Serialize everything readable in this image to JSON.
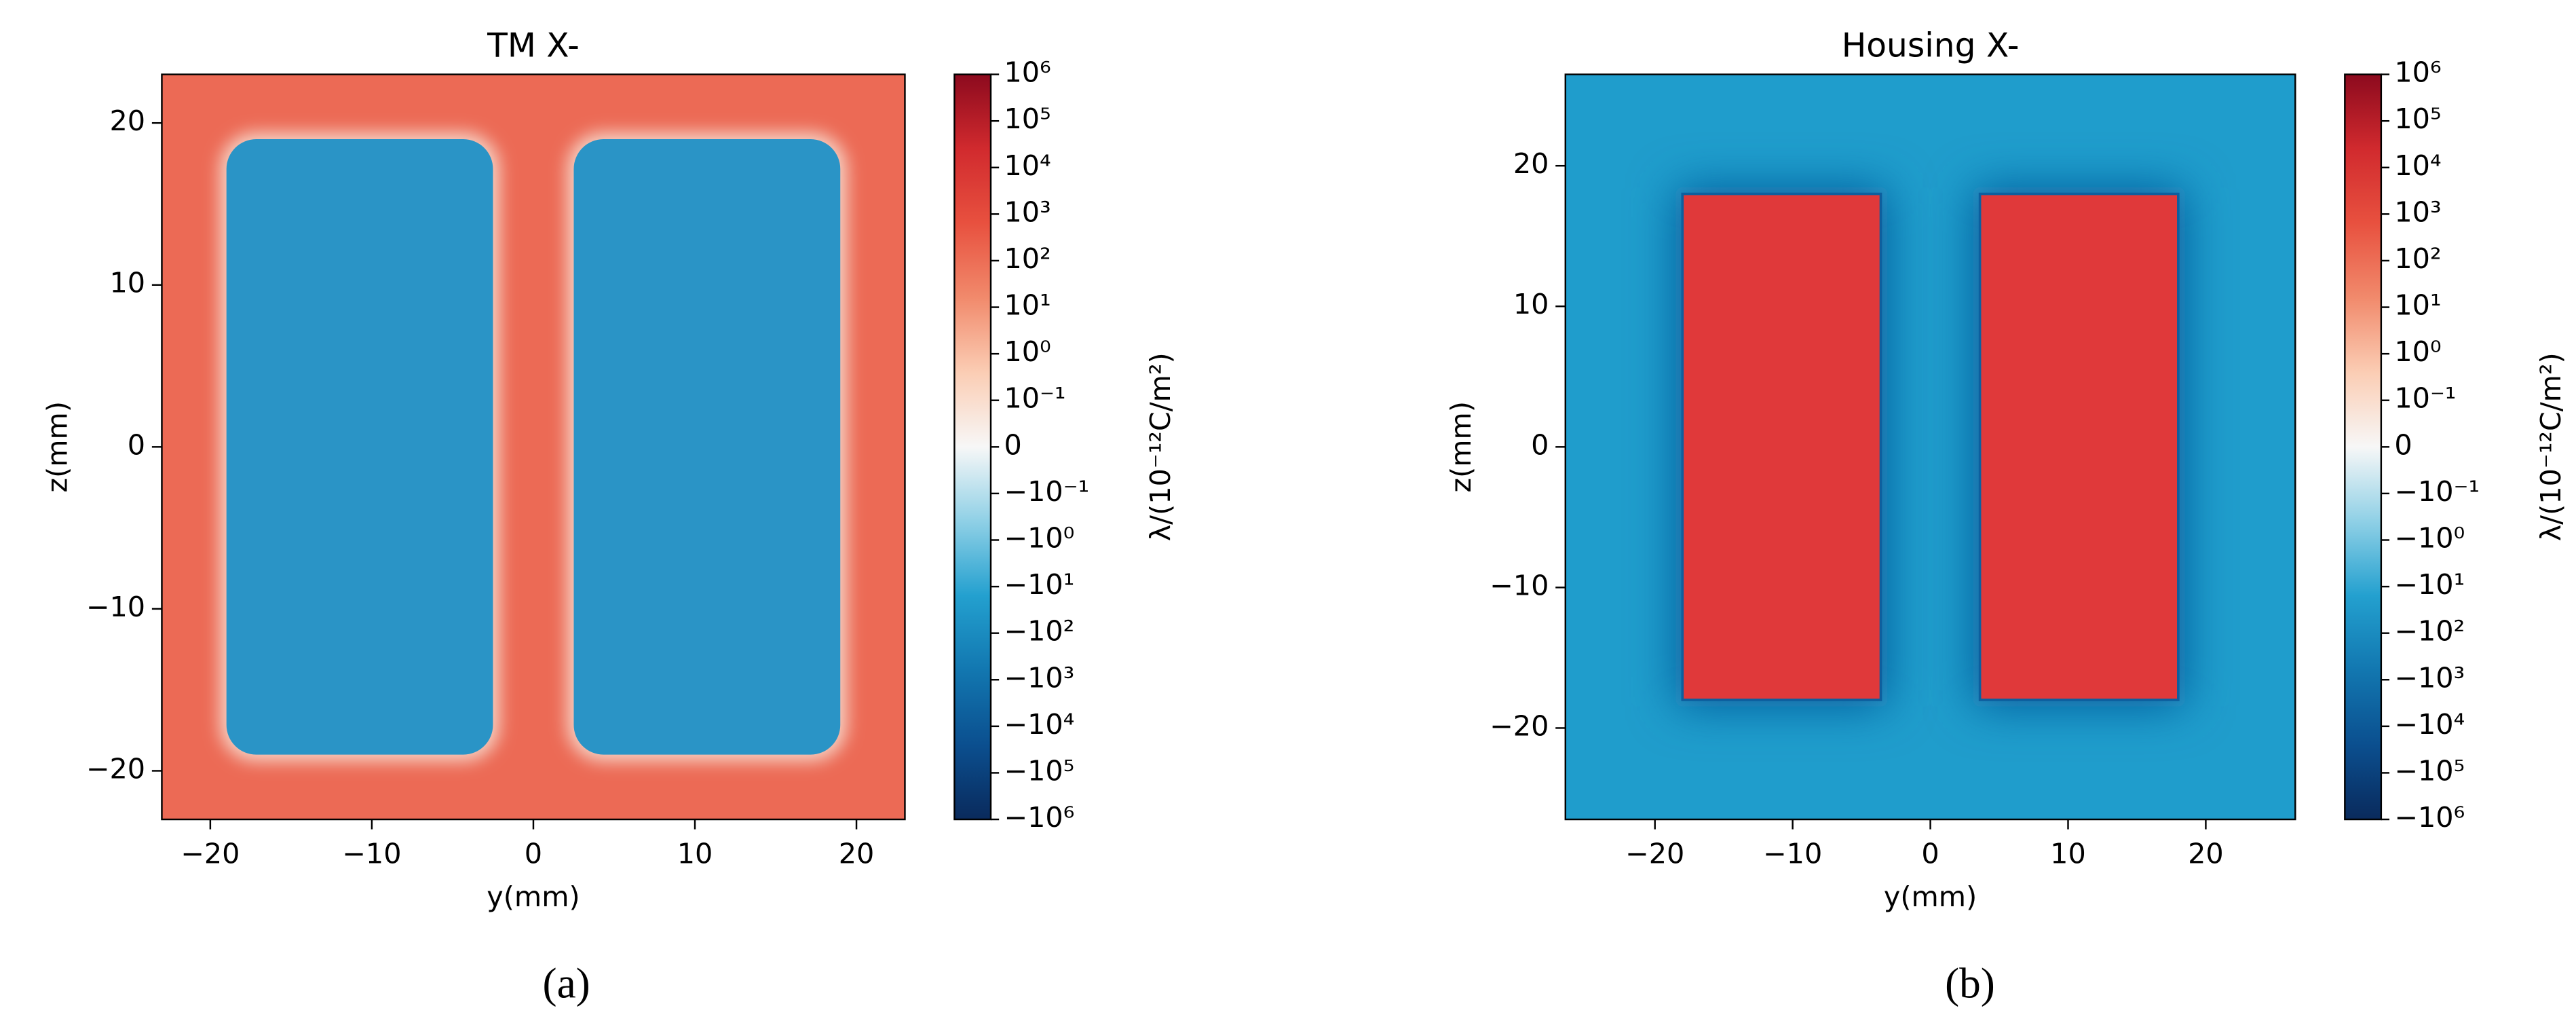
{
  "chart_data": [
    {
      "type": "heatmap",
      "title": "TM X-",
      "xlabel": "y(mm)",
      "ylabel": "z(mm)",
      "panel_label": "(a)",
      "colorbar_label": "λ/(10⁻¹²C/m²)",
      "xlim": [
        -23,
        23
      ],
      "ylim": [
        -23,
        23
      ],
      "xticks": [
        {
          "value": -20,
          "label": "−20"
        },
        {
          "value": -10,
          "label": "−10"
        },
        0,
        10,
        20
      ],
      "yticks": [
        {
          "value": -20,
          "label": "−20"
        },
        {
          "value": -10,
          "label": "−10"
        },
        0,
        10,
        20
      ],
      "background_color": "#ec6a55",
      "regions": [
        {
          "y": [
            -19,
            -2.5
          ],
          "z": [
            -19,
            19
          ],
          "color": "#2a94c6",
          "edge_color": "#f6d2c4"
        },
        {
          "y": [
            2.5,
            19
          ],
          "z": [
            -19,
            19
          ],
          "color": "#2a94c6",
          "edge_color": "#f6d2c4"
        }
      ],
      "clim": [
        -1000000,
        1000000
      ],
      "scale": "symlog",
      "linthresh": 0.1,
      "colormap": [
        "#0a2a5c",
        "#0b4f8f",
        "#1277b0",
        "#23a0cf",
        "#8fd0e6",
        "#f7f7f7",
        "#fbcdb4",
        "#f18a6c",
        "#e8513f",
        "#d12a2e",
        "#8c0a1e"
      ],
      "cticks": [
        {
          "value": 1000000,
          "label": "10⁶"
        },
        {
          "value": 100000,
          "label": "10⁵"
        },
        {
          "value": 10000,
          "label": "10⁴"
        },
        {
          "value": 1000,
          "label": "10³"
        },
        {
          "value": 100,
          "label": "10²"
        },
        {
          "value": 10,
          "label": "10¹"
        },
        {
          "value": 1,
          "label": "10⁰"
        },
        {
          "value": 0.1,
          "label": "10⁻¹"
        },
        0,
        {
          "value": -0.1,
          "label": "−10⁻¹"
        },
        {
          "value": -1,
          "label": "−10⁰"
        },
        {
          "value": -10,
          "label": "−10¹"
        },
        {
          "value": -100,
          "label": "−10²"
        },
        {
          "value": -1000,
          "label": "−10³"
        },
        {
          "value": -10000,
          "label": "−10⁴"
        },
        {
          "value": -100000,
          "label": "−10⁵"
        },
        {
          "value": -1000000,
          "label": "−10⁶"
        }
      ]
    },
    {
      "type": "heatmap",
      "title": "Housing X-",
      "xlabel": "y(mm)",
      "ylabel": "z(mm)",
      "panel_label": "(b)",
      "colorbar_label": "λ/(10⁻¹²C/m²)",
      "xlim": [
        -26.5,
        26.5
      ],
      "ylim": [
        -26.5,
        26.5
      ],
      "xticks": [
        {
          "value": -20,
          "label": "−20"
        },
        {
          "value": -10,
          "label": "−10"
        },
        0,
        10,
        20
      ],
      "yticks": [
        {
          "value": -20,
          "label": "−20"
        },
        {
          "value": -10,
          "label": "−10"
        },
        0,
        10,
        20
      ],
      "background_color": "#1f9dcc",
      "regions": [
        {
          "y": [
            -18,
            -3.6
          ],
          "z": [
            -18,
            18
          ],
          "color": "#e0393a",
          "edge_color": "#0d5f9e"
        },
        {
          "y": [
            3.6,
            18
          ],
          "z": [
            -18,
            18
          ],
          "color": "#e0393a",
          "edge_color": "#0d5f9e"
        }
      ],
      "clim": [
        -1000000,
        1000000
      ],
      "scale": "symlog",
      "linthresh": 0.1,
      "colormap": [
        "#0a2a5c",
        "#0b4f8f",
        "#1277b0",
        "#23a0cf",
        "#8fd0e6",
        "#f7f7f7",
        "#fbcdb4",
        "#f18a6c",
        "#e8513f",
        "#d12a2e",
        "#8c0a1e"
      ],
      "cticks": [
        {
          "value": 1000000,
          "label": "10⁶"
        },
        {
          "value": 100000,
          "label": "10⁵"
        },
        {
          "value": 10000,
          "label": "10⁴"
        },
        {
          "value": 1000,
          "label": "10³"
        },
        {
          "value": 100,
          "label": "10²"
        },
        {
          "value": 10,
          "label": "10¹"
        },
        {
          "value": 1,
          "label": "10⁰"
        },
        {
          "value": 0.1,
          "label": "10⁻¹"
        },
        0,
        {
          "value": -0.1,
          "label": "−10⁻¹"
        },
        {
          "value": -1,
          "label": "−10⁰"
        },
        {
          "value": -10,
          "label": "−10¹"
        },
        {
          "value": -100,
          "label": "−10²"
        },
        {
          "value": -1000,
          "label": "−10³"
        },
        {
          "value": -10000,
          "label": "−10⁴"
        },
        {
          "value": -100000,
          "label": "−10⁵"
        },
        {
          "value": -1000000,
          "label": "−10⁶"
        }
      ]
    }
  ]
}
